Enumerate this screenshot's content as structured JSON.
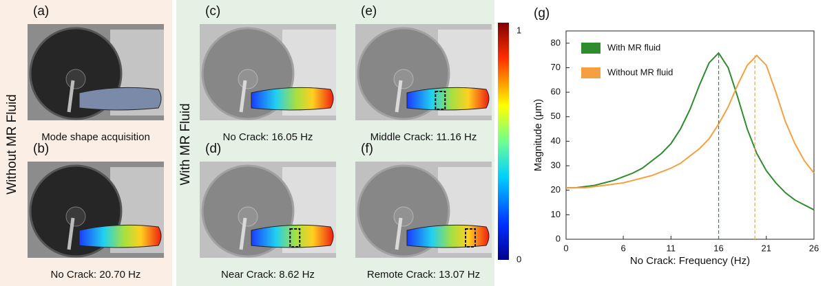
{
  "figure": {
    "left_label": "Without MR Fluid",
    "middle_label": "With MR Fluid",
    "panels": [
      {
        "tag": "(a)",
        "caption": "Mode shape acquisition"
      },
      {
        "tag": "(b)",
        "caption": "No Crack: 20.70 Hz"
      },
      {
        "tag": "(c)",
        "caption": "No Crack: 16.05 Hz"
      },
      {
        "tag": "(d)",
        "caption": "Near Crack: 8.62 Hz"
      },
      {
        "tag": "(e)",
        "caption": "Middle Crack: 11.16 Hz"
      },
      {
        "tag": "(f)",
        "caption": "Remote Crack: 13.07 Hz"
      }
    ],
    "colorbar_ticks": [
      1,
      0
    ]
  },
  "chart_data": {
    "type": "line",
    "panel_tag": "(g)",
    "xlabel": "No Crack: Frequency (Hz)",
    "ylabel": "Magnitude (μm)",
    "x": [
      0,
      1,
      2,
      3,
      4,
      5,
      6,
      7,
      8,
      9,
      10,
      11,
      12,
      13,
      14,
      15,
      16,
      17,
      18,
      19,
      20,
      21,
      22,
      23,
      24,
      25,
      26
    ],
    "series": [
      {
        "name": "With MR fluid",
        "color": "#2e8b2e",
        "values": [
          21,
          21,
          21.5,
          22,
          23,
          24,
          25.5,
          27,
          29,
          32,
          35,
          39,
          45,
          53,
          63,
          72,
          76,
          70,
          58,
          45,
          35,
          28,
          23,
          19,
          16,
          14,
          12
        ]
      },
      {
        "name": "Without MR fluid",
        "color": "#f5a040",
        "values": [
          21,
          21,
          21,
          21.5,
          22,
          22.5,
          23,
          24,
          25,
          26,
          27.5,
          29,
          31,
          34,
          37,
          41,
          47,
          54,
          63,
          71,
          75,
          71,
          60,
          48,
          39,
          32,
          27
        ]
      }
    ],
    "peak_lines": [
      16,
      19.8
    ],
    "xlim": [
      0,
      26
    ],
    "ylim": [
      0,
      85
    ],
    "xticks": [
      0,
      6,
      11,
      16,
      21,
      26
    ],
    "yticks": [
      0,
      10,
      20,
      30,
      40,
      50,
      60,
      70,
      80
    ],
    "legend": "upper left"
  }
}
